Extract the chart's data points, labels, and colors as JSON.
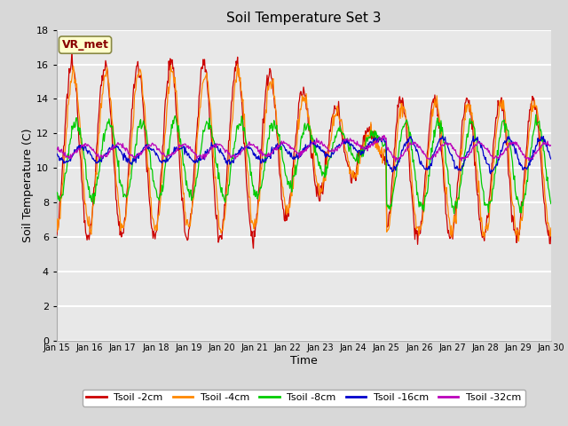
{
  "title": "Soil Temperature Set 3",
  "xlabel": "Time",
  "ylabel": "Soil Temperature (C)",
  "ylim": [
    0,
    18
  ],
  "yticks": [
    0,
    2,
    4,
    6,
    8,
    10,
    12,
    14,
    16,
    18
  ],
  "xtick_labels": [
    "Jan 15",
    "Jan 16",
    "Jan 17",
    "Jan 18",
    "Jan 19",
    "Jan 20",
    "Jan 21",
    "Jan 22",
    "Jan 23",
    "Jan 24",
    "Jan 25",
    "Jan 26",
    "Jan 27",
    "Jan 28",
    "Jan 29",
    "Jan 30"
  ],
  "series_colors": [
    "#cc0000",
    "#ff8800",
    "#00cc00",
    "#0000cc",
    "#bb00bb"
  ],
  "series_labels": [
    "Tsoil -2cm",
    "Tsoil -4cm",
    "Tsoil -8cm",
    "Tsoil -16cm",
    "Tsoil -32cm"
  ],
  "fig_bg_color": "#d8d8d8",
  "plot_bg_color": "#e8e8e8",
  "grid_color": "#ffffff",
  "annotation_text": "VR_met",
  "annotation_bg": "#ffffcc",
  "annotation_border": "#888844",
  "title_fontsize": 11,
  "axis_label_fontsize": 9,
  "tick_fontsize": 8,
  "legend_fontsize": 8
}
